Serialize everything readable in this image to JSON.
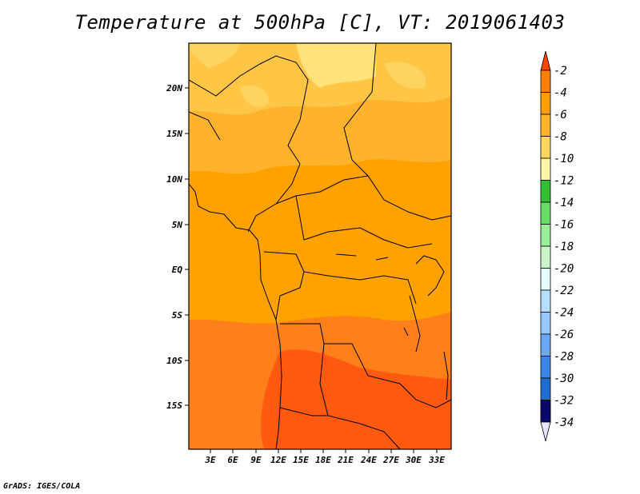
{
  "map": {
    "title": "Temperature at 500hPa [C], VT: 2019061403",
    "credit": "GrADS: IGES/COLA",
    "lat_labels": [
      "20N",
      "15N",
      "10N",
      "5N",
      "EQ",
      "5S",
      "10S",
      "15S"
    ],
    "lon_labels": [
      "3E",
      "6E",
      "9E",
      "12E",
      "15E",
      "18E",
      "21E",
      "24E",
      "27E",
      "30E",
      "33E"
    ]
  },
  "colorbar": {
    "labels": [
      "-2",
      "-4",
      "-6",
      "-8",
      "-10",
      "-12",
      "-14",
      "-16",
      "-18",
      "-20",
      "-22",
      "-24",
      "-26",
      "-28",
      "-30",
      "-32",
      "-34"
    ],
    "colors": [
      "#ff7f00",
      "#ff9f00",
      "#ffb42c",
      "#ffd65e",
      "#fff6aa",
      "#33bf33",
      "#66dd66",
      "#99ee99",
      "#c8f6c8",
      "#e8ffff",
      "#b5deff",
      "#96c8ff",
      "#69a8f5",
      "#3c87e6",
      "#1e6ed2",
      "#0a4bb4"
    ],
    "top_color": "#ff4400",
    "bottom_color": "#0a0a6e",
    "under_color": "#e6e6ff"
  }
}
